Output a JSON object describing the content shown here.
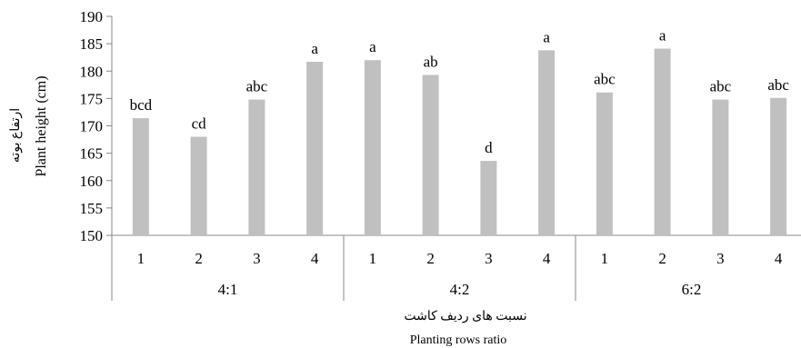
{
  "chart_data": {
    "type": "bar",
    "ylabel": "Plant height  (cm)",
    "ylabel_fa": "ارتفاع بوته",
    "xlabel": "Planting  rows ratio",
    "xlabel_fa": "نسبت های ردیف کاشت",
    "ylim": [
      150,
      190
    ],
    "yticks": [
      "150",
      "155",
      "160",
      "165",
      "170",
      "175",
      "180",
      "185",
      "190"
    ],
    "bar_color": "#c0c0c0",
    "grid": false,
    "legend": "none",
    "groups": [
      {
        "name": "4:1",
        "categories": [
          "1",
          "2",
          "3",
          "4"
        ],
        "values": [
          171.4,
          168.0,
          174.8,
          181.7
        ],
        "labels": [
          "bcd",
          "cd",
          "abc",
          "a"
        ]
      },
      {
        "name": "4:2",
        "categories": [
          "1",
          "2",
          "3",
          "4"
        ],
        "values": [
          182.0,
          179.3,
          163.6,
          183.8
        ],
        "labels": [
          "a",
          "ab",
          "d",
          "a"
        ]
      },
      {
        "name": "6:2",
        "categories": [
          "1",
          "2",
          "3",
          "4"
        ],
        "values": [
          176.1,
          184.1,
          174.8,
          175.1
        ],
        "labels": [
          "abc",
          "a",
          "abc",
          "abc"
        ]
      }
    ]
  }
}
